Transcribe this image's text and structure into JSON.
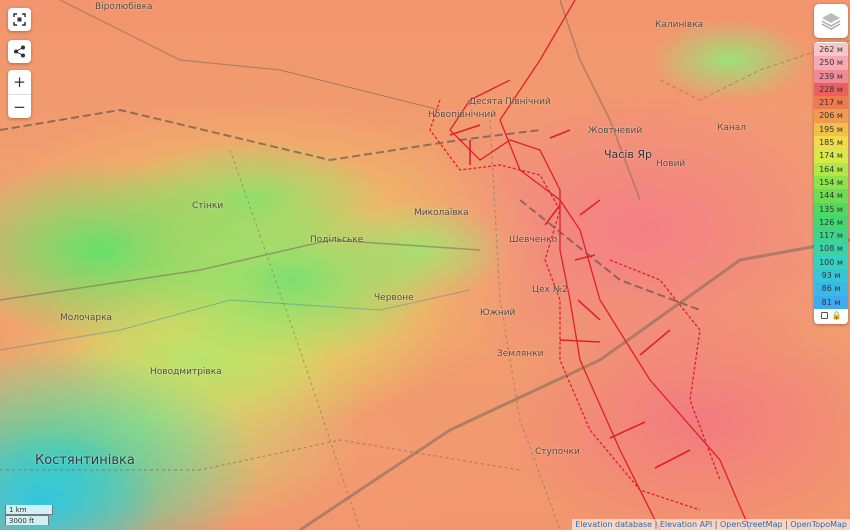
{
  "map": {
    "labels": {
      "virolyubivka": "Віролюбівка",
      "kalynivka": "Калинівка",
      "desiata": "Десята",
      "pivnichnyi": "Північний",
      "novopivnichnyi": "Новопівнічний",
      "zhovtnevyi": "Жовтневий",
      "chasiv_yar": "Часів Яр",
      "novyi": "Новий",
      "kanal": "Канал",
      "stinky": "Стінки",
      "mykolaivka": "Миколаївка",
      "podilske": "Подільське",
      "shevchenko": "Шевченко",
      "chervone": "Червоне",
      "tsekh2": "Цех №2",
      "yuzhnyi": "Южний",
      "molocharka": "Молочарка",
      "novodmytrivka": "Новодмитрівка",
      "zemlianky": "Землянки",
      "stupochky": "Ступочки",
      "kostiantynivka": "Костянтинівка"
    }
  },
  "controls": {
    "fullscreen_icon": "fullscreen-icon",
    "share_icon": "share-icon",
    "zoom_in": "+",
    "zoom_out": "−",
    "layers_icon": "layers-icon"
  },
  "legend": {
    "items": [
      {
        "label": "262 м",
        "color": "#f7c6cc"
      },
      {
        "label": "250 м",
        "color": "#f5a9b4"
      },
      {
        "label": "239 м",
        "color": "#f08a96"
      },
      {
        "label": "228 м",
        "color": "#ec5f5f"
      },
      {
        "label": "217 м",
        "color": "#f07a50"
      },
      {
        "label": "206 м",
        "color": "#f29a50"
      },
      {
        "label": "195 м",
        "color": "#f2c04a"
      },
      {
        "label": "185 м",
        "color": "#eedc4a"
      },
      {
        "label": "174 м",
        "color": "#d8ea48"
      },
      {
        "label": "164 м",
        "color": "#b0e84a"
      },
      {
        "label": "154 м",
        "color": "#8ee24e"
      },
      {
        "label": "144 м",
        "color": "#6cdc54"
      },
      {
        "label": "135 м",
        "color": "#52d85e"
      },
      {
        "label": "126 м",
        "color": "#44d670"
      },
      {
        "label": "117 м",
        "color": "#3ed48a"
      },
      {
        "label": "108 м",
        "color": "#3ad2a6"
      },
      {
        "label": "100 м",
        "color": "#38d0c0"
      },
      {
        "label": "93 м",
        "color": "#36c6d8"
      },
      {
        "label": "86 м",
        "color": "#3ab8e6"
      },
      {
        "label": "81 м",
        "color": "#40aaf0"
      }
    ]
  },
  "scale": {
    "metric": "1 km",
    "imperial": "3000 ft"
  },
  "attribution": [
    "Elevation database",
    "Elevation API",
    "OpenStreetMap",
    "OpenTopoMap"
  ]
}
